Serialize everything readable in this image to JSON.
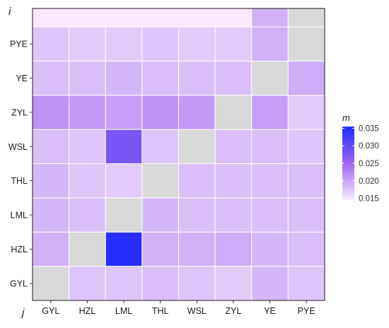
{
  "chart_data": {
    "type": "heatmap",
    "title": "",
    "xlabel": "j",
    "ylabel": "i",
    "x_categories": [
      "GYL",
      "HZL",
      "LML",
      "THL",
      "WSL",
      "ZYL",
      "YE",
      "PYE"
    ],
    "y_categories": [
      "GYL",
      "HZL",
      "LML",
      "THL",
      "WSL",
      "ZYL",
      "YE",
      "PYE"
    ],
    "values": [
      [
        null,
        0.0175,
        0.0175,
        0.018,
        0.0175,
        0.017,
        0.0185,
        0.0175
      ],
      [
        0.019,
        null,
        0.035,
        0.019,
        0.019,
        0.0195,
        0.0185,
        0.018
      ],
      [
        0.0185,
        0.018,
        null,
        0.0185,
        0.018,
        0.018,
        0.018,
        0.018
      ],
      [
        0.0185,
        0.0175,
        0.017,
        null,
        0.018,
        0.018,
        0.018,
        0.018
      ],
      [
        0.018,
        0.0175,
        0.028,
        0.0175,
        null,
        0.018,
        0.018,
        0.0175
      ],
      [
        0.0215,
        0.021,
        0.0205,
        0.0215,
        0.021,
        null,
        0.0205,
        0.017
      ],
      [
        0.018,
        0.018,
        0.0185,
        0.018,
        0.018,
        0.018,
        null,
        0.0195
      ],
      [
        0.0175,
        0.017,
        0.017,
        0.0175,
        0.017,
        0.017,
        0.019,
        null
      ]
    ],
    "top_strip": true,
    "diagonal": "missing",
    "missing_color": "#d9d9d9",
    "legend": {
      "title": "m",
      "ticks": [
        0.015,
        0.02,
        0.025,
        0.03,
        0.035
      ],
      "tick_labels": [
        "0.015",
        "0.020",
        "0.025",
        "0.030",
        "0.035"
      ],
      "min": 0.0145,
      "max": 0.0355,
      "color_low": "#f7ebfd",
      "color_mid": "#9f66f2",
      "color_high": "#1f2bff",
      "placement": "right"
    },
    "grid": true,
    "colors": {
      "panel_border": "#1a1a1a",
      "cell_border": "#ffffff",
      "strip": "#fce8fc",
      "axis_text": "#333333"
    }
  }
}
